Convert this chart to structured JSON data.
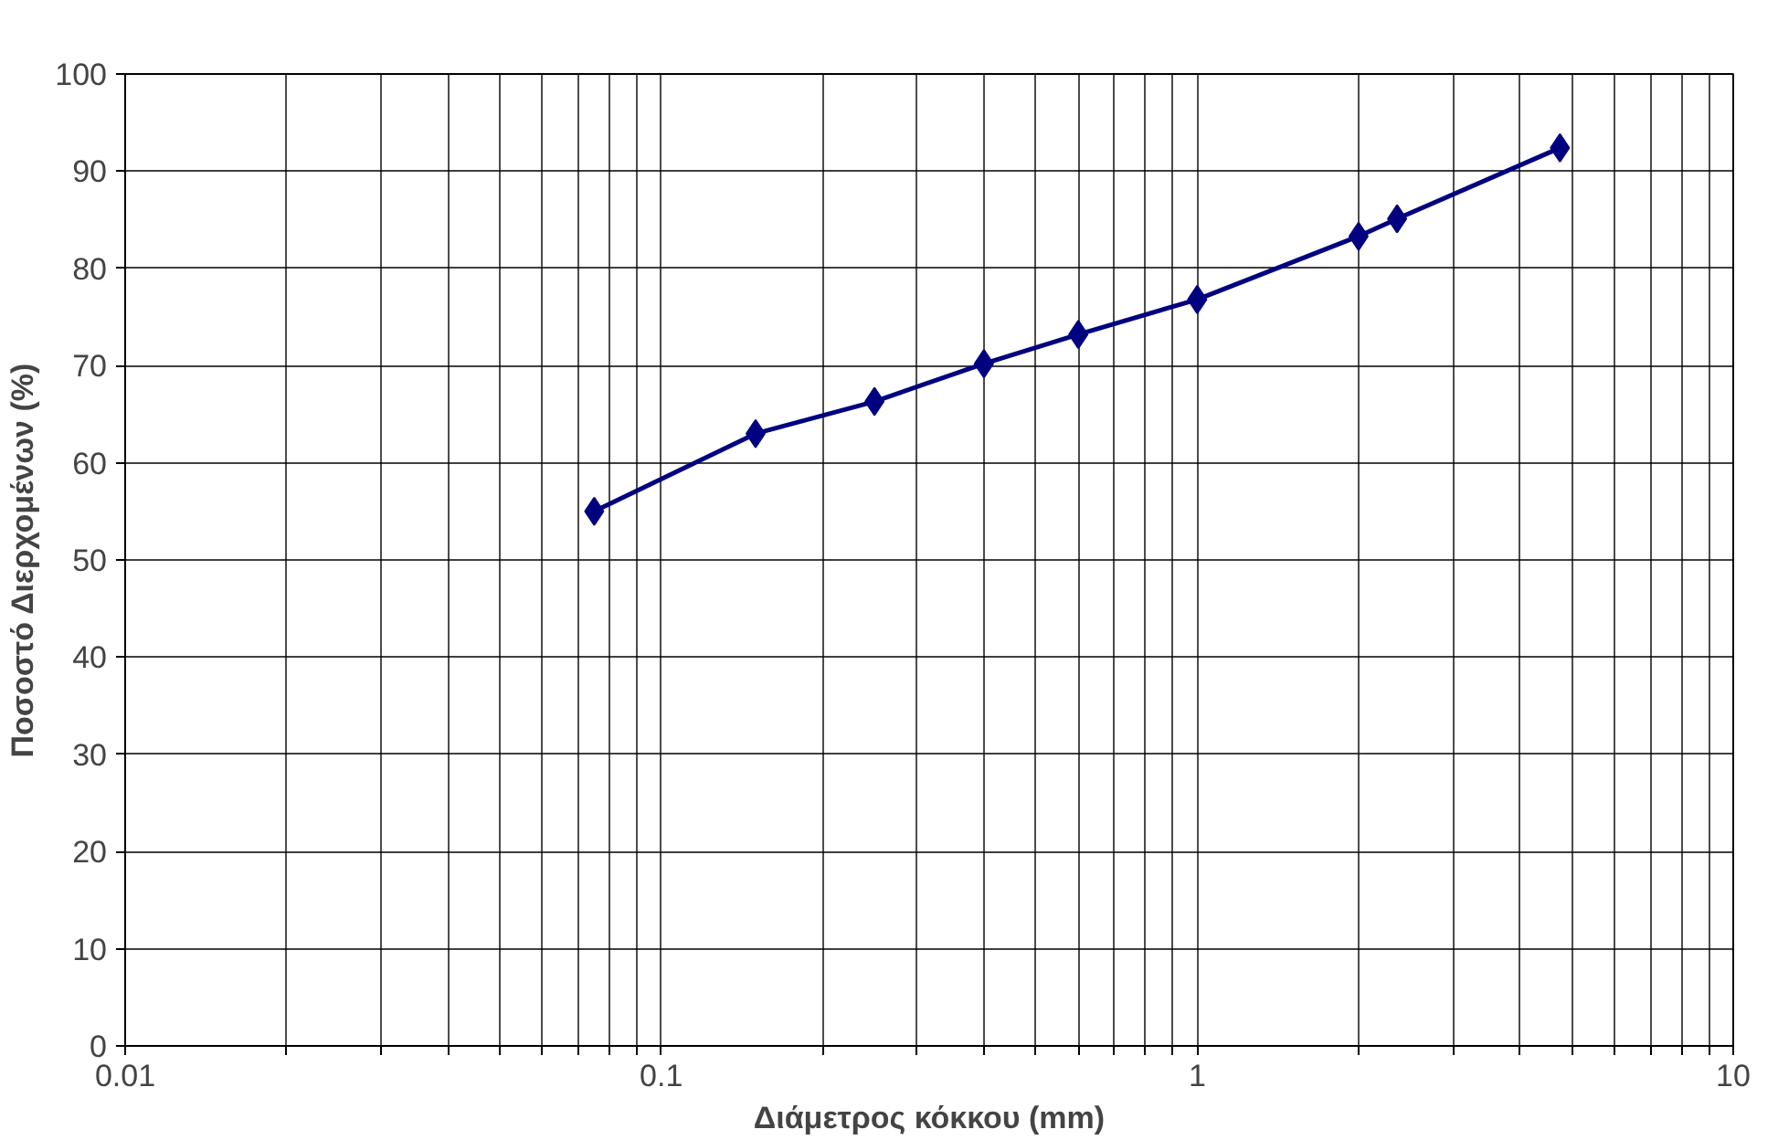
{
  "chart_data": {
    "type": "line",
    "xlabel": "Διάμετρος κόκκου (mm)",
    "ylabel": "Ποσοστό Διερχομένων (%)",
    "log": "x",
    "xlim": [
      0.01,
      10
    ],
    "ylim": [
      0,
      100
    ],
    "xticks": [
      0.01,
      {
        "value": 0.02,
        "label": null
      },
      {
        "value": 0.03,
        "label": null
      },
      {
        "value": 0.04,
        "label": null
      },
      {
        "value": 0.05,
        "label": null
      },
      {
        "value": 0.06,
        "label": null
      },
      {
        "value": 0.07,
        "label": null
      },
      {
        "value": 0.08,
        "label": null
      },
      {
        "value": 0.09,
        "label": null
      },
      0.1,
      {
        "value": 0.2,
        "label": null
      },
      {
        "value": 0.3,
        "label": null
      },
      {
        "value": 0.4,
        "label": null
      },
      {
        "value": 0.5,
        "label": null
      },
      {
        "value": 0.6,
        "label": null
      },
      {
        "value": 0.7,
        "label": null
      },
      {
        "value": 0.8,
        "label": null
      },
      {
        "value": 0.9,
        "label": null
      },
      1,
      {
        "value": 2,
        "label": null
      },
      {
        "value": 3,
        "label": null
      },
      {
        "value": 4,
        "label": null
      },
      {
        "value": 5,
        "label": null
      },
      {
        "value": 6,
        "label": null
      },
      {
        "value": 7,
        "label": null
      },
      {
        "value": 8,
        "label": null
      },
      {
        "value": 9,
        "label": null
      },
      10
    ],
    "yticks": [
      0,
      10,
      20,
      30,
      40,
      50,
      60,
      70,
      80,
      90,
      100
    ],
    "grid": true,
    "marker": "diamond",
    "line_style": "solid",
    "x": [
      0.075,
      0.15,
      0.25,
      0.4,
      0.6,
      1.0,
      2.0,
      2.36,
      4.75
    ],
    "series": [
      {
        "color": "#000080",
        "values": [
          55,
          63,
          66.3,
          70.2,
          73.2,
          76.8,
          83.3,
          85.1,
          92.4
        ]
      }
    ]
  }
}
